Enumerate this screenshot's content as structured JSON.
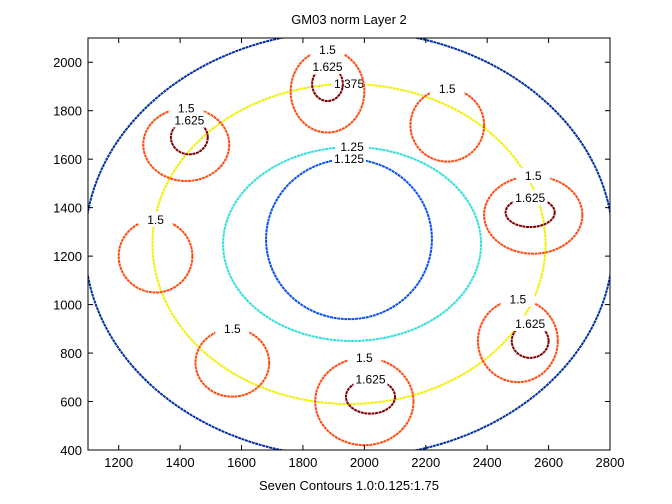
{
  "chart_data": {
    "type": "contour",
    "title": "GM03 norm Layer 2",
    "xlabel": "Seven Contours 1.0:0.125:1.75",
    "xlim": [
      1100,
      2800
    ],
    "ylim": [
      400,
      2100
    ],
    "xticks": [
      1200,
      1400,
      1600,
      1800,
      2000,
      2200,
      2400,
      2600,
      2800
    ],
    "yticks": [
      400,
      600,
      800,
      1000,
      1200,
      1400,
      1600,
      1800,
      2000
    ],
    "levels": [
      {
        "value": 1.125,
        "color": "#0a50f0"
      },
      {
        "value": 1.25,
        "color": "#30e0d8"
      },
      {
        "value": 1.375,
        "color": "#f0f000"
      },
      {
        "value": 1.5,
        "color": "#ff4a10"
      },
      {
        "value": 1.625,
        "color": "#800000"
      }
    ],
    "contours": [
      {
        "color": "#0030a0",
        "cx": 1950,
        "cy": 1250,
        "rx": 860,
        "ry": 880
      },
      {
        "level": 1.375,
        "cx": 1950,
        "cy": 1250,
        "rx": 640,
        "ry": 660
      },
      {
        "level": 1.25,
        "cx": 1960,
        "cy": 1250,
        "rx": 420,
        "ry": 400
      },
      {
        "level": 1.125,
        "cx": 1950,
        "cy": 1270,
        "rx": 270,
        "ry": 330
      },
      {
        "level": 1.5,
        "cx": 1880,
        "cy": 1880,
        "rx": 120,
        "ry": 170
      },
      {
        "level": 1.5,
        "cx": 2270,
        "cy": 1740,
        "rx": 120,
        "ry": 150
      },
      {
        "level": 1.5,
        "cx": 1420,
        "cy": 1660,
        "rx": 140,
        "ry": 150
      },
      {
        "level": 1.5,
        "cx": 2550,
        "cy": 1370,
        "rx": 160,
        "ry": 160
      },
      {
        "level": 1.5,
        "cx": 1320,
        "cy": 1200,
        "rx": 120,
        "ry": 150
      },
      {
        "level": 1.5,
        "cx": 2500,
        "cy": 850,
        "rx": 130,
        "ry": 170
      },
      {
        "level": 1.5,
        "cx": 1570,
        "cy": 760,
        "rx": 120,
        "ry": 140
      },
      {
        "level": 1.5,
        "cx": 2000,
        "cy": 600,
        "rx": 160,
        "ry": 180
      },
      {
        "level": 1.625,
        "cx": 1880,
        "cy": 1910,
        "rx": 50,
        "ry": 70
      },
      {
        "level": 1.625,
        "cx": 1430,
        "cy": 1690,
        "rx": 60,
        "ry": 70
      },
      {
        "level": 1.625,
        "cx": 2540,
        "cy": 1380,
        "rx": 80,
        "ry": 60
      },
      {
        "level": 1.625,
        "cx": 2540,
        "cy": 850,
        "rx": 60,
        "ry": 70
      },
      {
        "level": 1.625,
        "cx": 2020,
        "cy": 620,
        "rx": 80,
        "ry": 70
      }
    ]
  }
}
